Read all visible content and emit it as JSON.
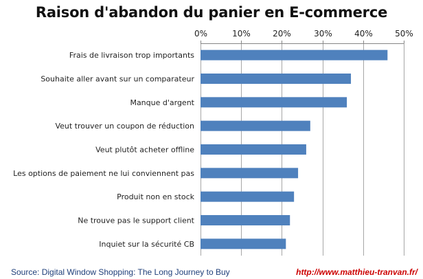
{
  "chart_data": {
    "type": "bar",
    "orientation": "horizontal",
    "title": "Raison d'abandon du panier en E-commerce",
    "categories": [
      "Frais de livraison trop importants",
      "Souhaite aller avant sur un comparateur",
      "Manque d'argent",
      "Veut trouver un coupon de réduction",
      "Veut plutôt acheter offline",
      "Les options de paiement ne lui conviennent pas",
      "Produit non en stock",
      "Ne trouve pas le support client",
      "Inquiet sur la sécurité CB"
    ],
    "values": [
      0.46,
      0.37,
      0.36,
      0.27,
      0.26,
      0.24,
      0.23,
      0.22,
      0.21
    ],
    "xlim": [
      0,
      0.5
    ],
    "xticks": [
      0,
      0.1,
      0.2,
      0.3,
      0.4,
      0.5
    ],
    "xtick_labels": [
      "0%",
      "10%",
      "20%",
      "30%",
      "40%",
      "50%"
    ],
    "axis_position": "top",
    "grid": true,
    "legend": false,
    "bar_color": "#4f81bd"
  },
  "footer": {
    "source": "Source: Digital Window Shopping: The Long Journey to Buy",
    "url": "http://www.matthieu-tranvan.fr/"
  }
}
